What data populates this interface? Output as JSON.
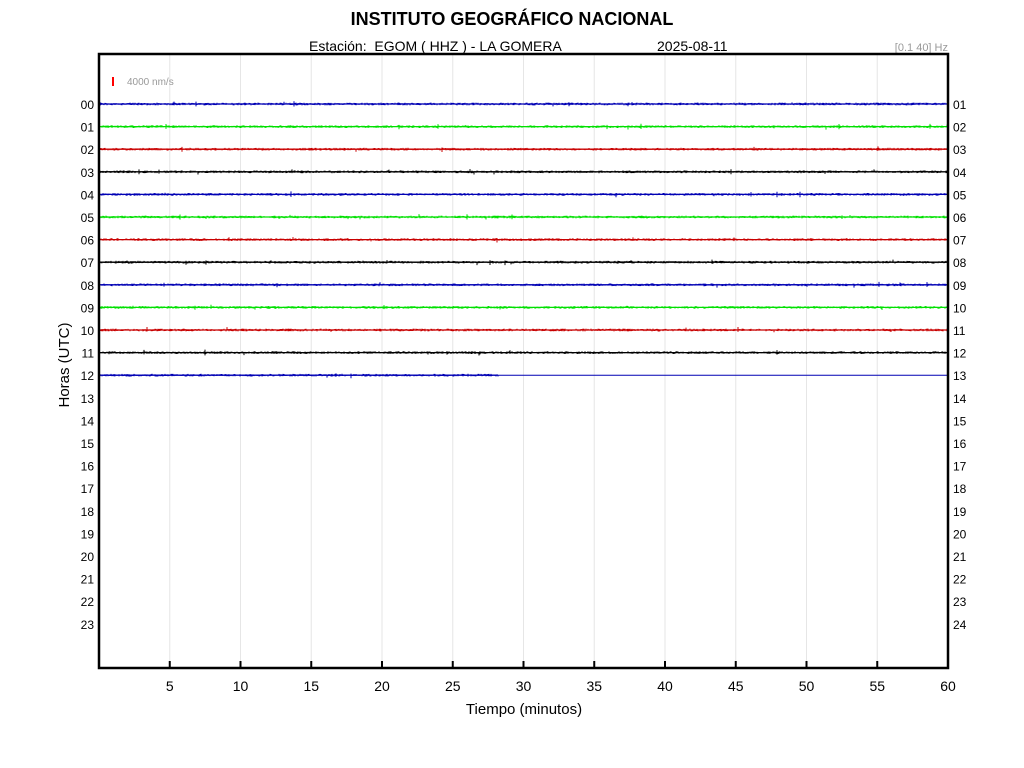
{
  "header": {
    "title": "INSTITUTO GEOGRÁFICO NACIONAL",
    "station_label": "Estación:  EGOM ( HHZ ) - LA GOMERA",
    "date": "2025-08-11",
    "filter": "[0.1 40] Hz"
  },
  "chart_data": {
    "type": "line",
    "title": "INSTITUTO GEOGRÁFICO NACIONAL",
    "xlabel": "Tiempo (minutos)",
    "ylabel": "Horas (UTC)",
    "xlim": [
      0,
      60
    ],
    "x_ticks": [
      5,
      10,
      15,
      20,
      25,
      30,
      35,
      40,
      45,
      50,
      55,
      60
    ],
    "grid": true,
    "scale_label": "4000 nm/s",
    "scale_color": "#ff0000",
    "left_hour_labels": [
      "00",
      "01",
      "02",
      "03",
      "04",
      "05",
      "06",
      "07",
      "08",
      "09",
      "10",
      "11",
      "12",
      "13",
      "14",
      "15",
      "16",
      "17",
      "18",
      "19",
      "20",
      "21",
      "22",
      "23"
    ],
    "right_hour_labels": [
      "01",
      "02",
      "03",
      "04",
      "05",
      "06",
      "07",
      "08",
      "09",
      "10",
      "11",
      "12",
      "13",
      "14",
      "15",
      "16",
      "17",
      "18",
      "19",
      "20",
      "21",
      "22",
      "23",
      "24"
    ],
    "colors": [
      "#0000b4",
      "#00e000",
      "#c80000",
      "#000000"
    ],
    "traces": [
      {
        "hour": "00",
        "start_min": 0,
        "end_min": 60
      },
      {
        "hour": "01",
        "start_min": 0,
        "end_min": 60
      },
      {
        "hour": "02",
        "start_min": 0,
        "end_min": 60
      },
      {
        "hour": "03",
        "start_min": 0,
        "end_min": 60
      },
      {
        "hour": "04",
        "start_min": 0,
        "end_min": 60
      },
      {
        "hour": "05",
        "start_min": 0,
        "end_min": 60
      },
      {
        "hour": "06",
        "start_min": 0,
        "end_min": 60
      },
      {
        "hour": "07",
        "start_min": 0,
        "end_min": 60
      },
      {
        "hour": "08",
        "start_min": 0,
        "end_min": 60
      },
      {
        "hour": "09",
        "start_min": 0,
        "end_min": 60
      },
      {
        "hour": "10",
        "start_min": 0,
        "end_min": 60
      },
      {
        "hour": "11",
        "start_min": 0,
        "end_min": 60
      },
      {
        "hour": "12",
        "start_min": 0,
        "end_min": 28.2
      }
    ]
  }
}
